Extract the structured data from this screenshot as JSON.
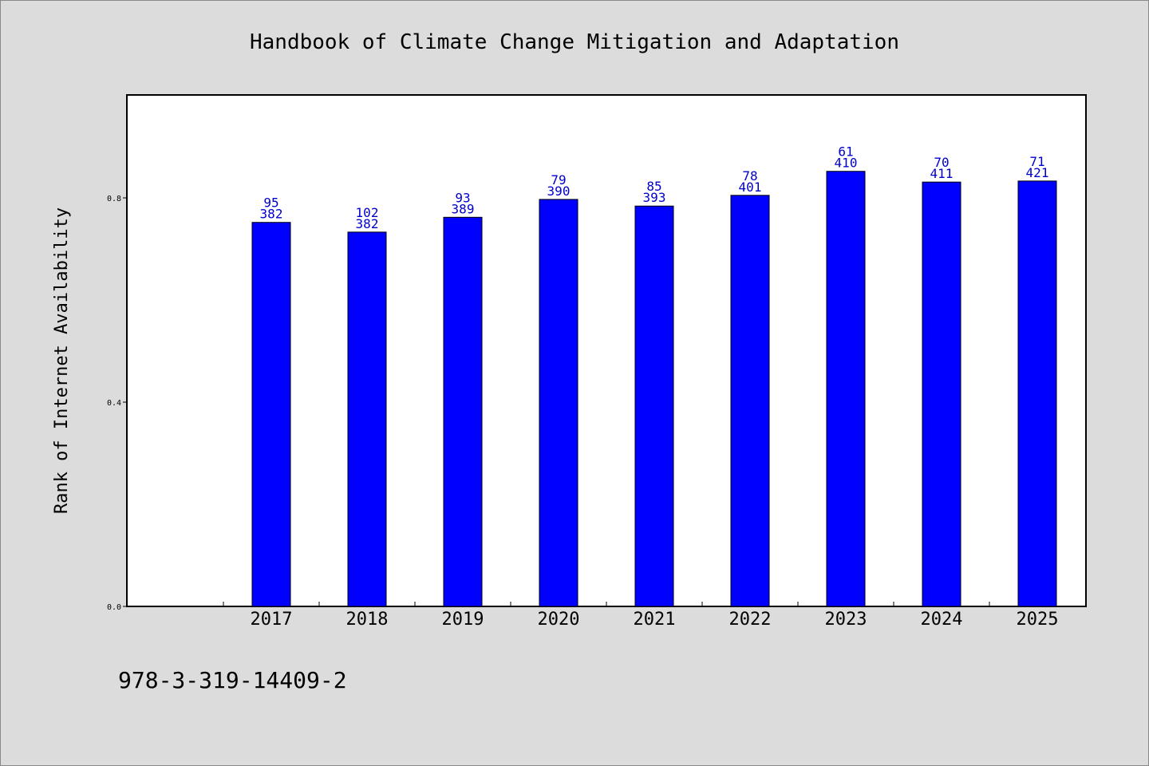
{
  "chart_data": {
    "type": "bar",
    "title": "Handbook of Climate Change Mitigation and Adaptation",
    "ylabel": "Rank of Internet Availability",
    "xlabel": "",
    "ylim": [
      0,
      1.0
    ],
    "yticks": [
      0.0,
      0.4,
      0.8
    ],
    "ytick_labels": [
      "0.0",
      "0.4",
      "0.8"
    ],
    "x_slots": 10,
    "categories": [
      "2017",
      "2018",
      "2019",
      "2020",
      "2021",
      "2022",
      "2023",
      "2024",
      "2025"
    ],
    "values": [
      0.752,
      0.733,
      0.762,
      0.797,
      0.784,
      0.805,
      0.852,
      0.831,
      0.833
    ],
    "label_top": [
      "95",
      "102",
      "93",
      "79",
      "85",
      "78",
      "61",
      "70",
      "71"
    ],
    "label_bottom": [
      "382",
      "382",
      "389",
      "390",
      "393",
      "401",
      "410",
      "411",
      "421"
    ],
    "bar_color": "#0000ff",
    "label_color": "#0000cc",
    "grid": false,
    "footnote": "978-3-319-14409-2"
  }
}
